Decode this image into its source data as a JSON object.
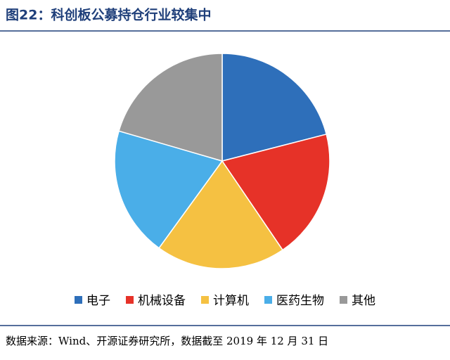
{
  "chart_data": {
    "type": "pie",
    "title": "图22：科创板公募持仓行业较集中",
    "categories": [
      "电子",
      "机械设备",
      "计算机",
      "医药生物",
      "其他"
    ],
    "values": [
      21,
      19.5,
      19.5,
      19.5,
      20.5
    ],
    "colors": [
      "#2e6fba",
      "#e63228",
      "#f5c142",
      "#4aaee8",
      "#999999"
    ],
    "legend": "bottom"
  },
  "source": "数据来源：Wind、开源证券研究所，数据截至 2019 年 12 月 31 日"
}
